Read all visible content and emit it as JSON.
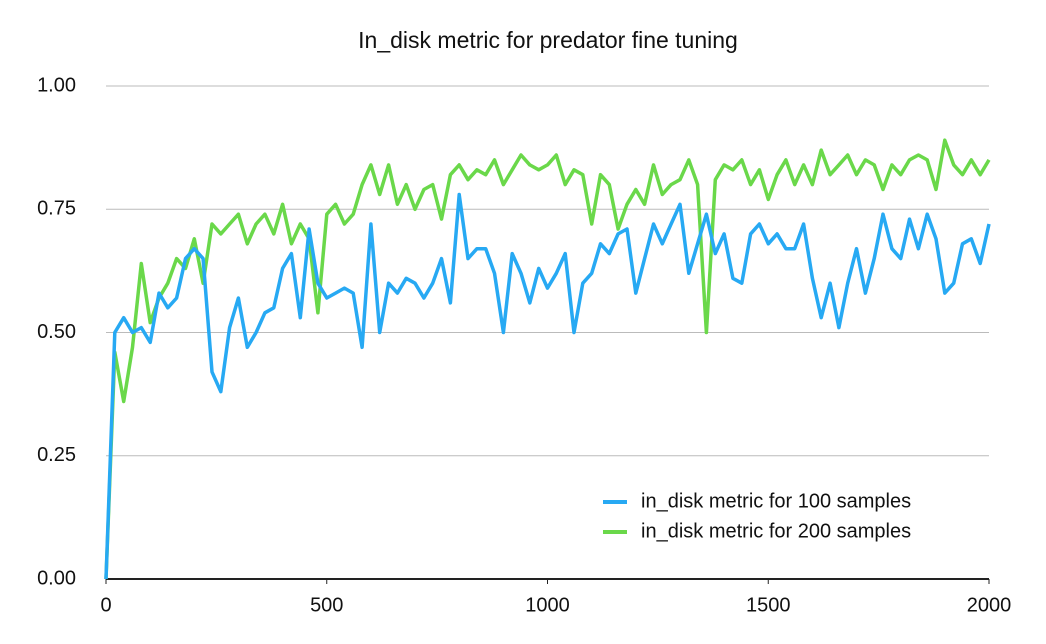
{
  "chart_data": {
    "type": "line",
    "title": "In_disk metric for predator fine tuning",
    "x": [
      0,
      20,
      40,
      60,
      80,
      100,
      120,
      140,
      160,
      180,
      200,
      220,
      240,
      260,
      280,
      300,
      320,
      340,
      360,
      380,
      400,
      420,
      440,
      460,
      480,
      500,
      520,
      540,
      560,
      580,
      600,
      620,
      640,
      660,
      680,
      700,
      720,
      740,
      760,
      780,
      800,
      820,
      840,
      860,
      880,
      900,
      920,
      940,
      960,
      980,
      1000,
      1020,
      1040,
      1060,
      1080,
      1100,
      1120,
      1140,
      1160,
      1180,
      1200,
      1220,
      1240,
      1260,
      1280,
      1300,
      1320,
      1340,
      1360,
      1380,
      1400,
      1420,
      1440,
      1460,
      1480,
      1500,
      1520,
      1540,
      1560,
      1580,
      1600,
      1620,
      1640,
      1660,
      1680,
      1700,
      1720,
      1740,
      1760,
      1780,
      1800,
      1820,
      1840,
      1860,
      1880,
      1900,
      1920,
      1940,
      1960,
      1980,
      2000
    ],
    "series": [
      {
        "name": "in_disk metric for 100 samples",
        "color": "#27a9f3",
        "values": [
          0,
          0.5,
          0.53,
          0.5,
          0.51,
          0.48,
          0.58,
          0.55,
          0.57,
          0.65,
          0.67,
          0.65,
          0.42,
          0.38,
          0.51,
          0.57,
          0.47,
          0.5,
          0.54,
          0.55,
          0.63,
          0.66,
          0.53,
          0.71,
          0.6,
          0.57,
          0.58,
          0.59,
          0.58,
          0.47,
          0.72,
          0.5,
          0.6,
          0.58,
          0.61,
          0.6,
          0.57,
          0.6,
          0.65,
          0.56,
          0.78,
          0.65,
          0.67,
          0.67,
          0.62,
          0.5,
          0.66,
          0.62,
          0.56,
          0.63,
          0.59,
          0.62,
          0.66,
          0.5,
          0.6,
          0.62,
          0.68,
          0.66,
          0.7,
          0.71,
          0.58,
          0.65,
          0.72,
          0.68,
          0.72,
          0.76,
          0.62,
          0.68,
          0.74,
          0.66,
          0.7,
          0.61,
          0.6,
          0.7,
          0.72,
          0.68,
          0.7,
          0.67,
          0.67,
          0.72,
          0.61,
          0.53,
          0.6,
          0.51,
          0.6,
          0.67,
          0.58,
          0.65,
          0.74,
          0.67,
          0.65,
          0.73,
          0.67,
          0.74,
          0.69,
          0.58,
          0.6,
          0.68,
          0.69,
          0.64,
          0.72
        ]
      },
      {
        "name": "in_disk metric for 200 samples",
        "color": "#6ad84a",
        "values": [
          0,
          0.46,
          0.36,
          0.47,
          0.64,
          0.52,
          0.57,
          0.6,
          0.65,
          0.63,
          0.69,
          0.6,
          0.72,
          0.7,
          0.72,
          0.74,
          0.68,
          0.72,
          0.74,
          0.7,
          0.76,
          0.68,
          0.72,
          0.69,
          0.54,
          0.74,
          0.76,
          0.72,
          0.74,
          0.8,
          0.84,
          0.78,
          0.84,
          0.76,
          0.8,
          0.75,
          0.79,
          0.8,
          0.73,
          0.82,
          0.84,
          0.81,
          0.83,
          0.82,
          0.85,
          0.8,
          0.83,
          0.86,
          0.84,
          0.83,
          0.84,
          0.86,
          0.8,
          0.83,
          0.82,
          0.72,
          0.82,
          0.8,
          0.71,
          0.76,
          0.79,
          0.76,
          0.84,
          0.78,
          0.8,
          0.81,
          0.85,
          0.8,
          0.5,
          0.81,
          0.84,
          0.83,
          0.85,
          0.8,
          0.83,
          0.77,
          0.82,
          0.85,
          0.8,
          0.84,
          0.8,
          0.87,
          0.82,
          0.84,
          0.86,
          0.82,
          0.85,
          0.84,
          0.79,
          0.84,
          0.82,
          0.85,
          0.86,
          0.85,
          0.79,
          0.89,
          0.84,
          0.82,
          0.85,
          0.82,
          0.85
        ]
      }
    ],
    "xlim": [
      0,
      2000
    ],
    "xticks": [
      0,
      500,
      1000,
      1500,
      2000
    ],
    "ylim": [
      0,
      1
    ],
    "yticks": [
      {
        "value": 0,
        "label": "0.00"
      },
      {
        "value": 0.25,
        "label": "0.25"
      },
      {
        "value": 0.5,
        "label": "0.50"
      },
      {
        "value": 0.75,
        "label": "0.75"
      },
      {
        "value": 1,
        "label": "1.00"
      }
    ],
    "grid": true,
    "legend": "lower right"
  }
}
